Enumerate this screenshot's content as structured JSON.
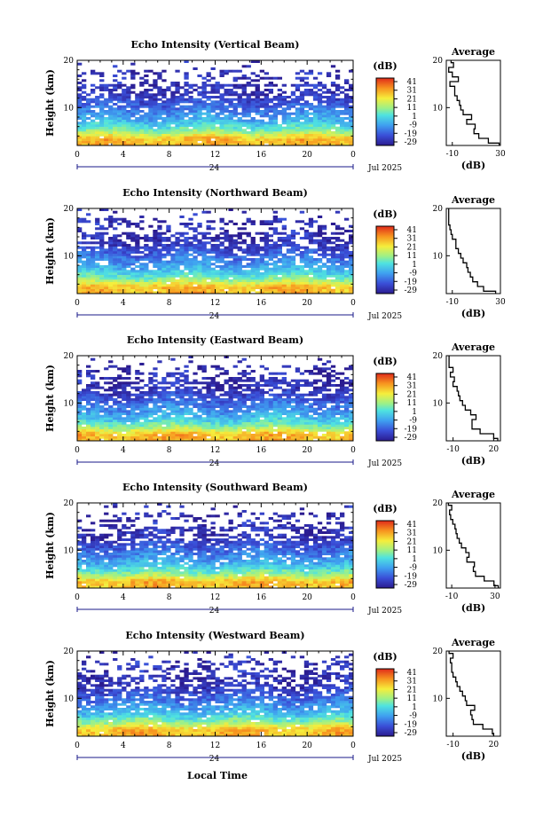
{
  "chart_data": {
    "type": "heatmap",
    "colorbar": {
      "unit": "(dB)",
      "ticks": [
        "41",
        "31",
        "21",
        "11",
        "1",
        "-9",
        "-19",
        "-29"
      ],
      "range": [
        -29,
        46
      ],
      "colormap": "jet"
    },
    "x_axis": {
      "label": "Local Time",
      "ticks": [
        "0",
        "4",
        "8",
        "12",
        "16",
        "20",
        "0"
      ],
      "range": [
        0,
        24
      ],
      "day_label": "24",
      "date_label": "Jul 2025"
    },
    "y_axis": {
      "label": "Height (km)",
      "ticks": [
        "20",
        "10"
      ],
      "range": [
        2,
        20
      ]
    },
    "profile_axis": {
      "title": "Average",
      "xlabel": "(dB)",
      "ylabel_ticks": [
        "20",
        "10"
      ]
    },
    "panels": [
      {
        "title": "Echo Intensity (Vertical Beam)",
        "profile_xticks": [
          "-10",
          "30"
        ],
        "profile_xrange": [
          -15,
          30
        ],
        "average_profile": {
          "height_km": [
            2,
            3,
            4,
            5,
            6,
            7,
            8,
            9,
            10,
            11,
            12,
            13,
            14,
            15,
            16,
            17,
            18,
            19,
            20
          ],
          "db": [
            29,
            20,
            12,
            8,
            9,
            2,
            6,
            -1,
            -3,
            -4,
            -6,
            -8,
            -8,
            -12,
            -5,
            -10,
            -13,
            -9,
            -11
          ]
        }
      },
      {
        "title": "Echo Intensity (Northward Beam)",
        "profile_xticks": [
          "-10",
          "30"
        ],
        "profile_xrange": [
          -15,
          30
        ],
        "average_profile": {
          "height_km": [
            2,
            3,
            4,
            5,
            6,
            7,
            8,
            9,
            10,
            11,
            12,
            13,
            14,
            15,
            16,
            17,
            18,
            19,
            20
          ],
          "db": [
            26,
            16,
            11,
            7,
            5,
            3,
            2,
            -1,
            -3,
            -5,
            -7,
            -7,
            -10,
            -11,
            -12,
            -13,
            -13,
            -13,
            -13
          ]
        }
      },
      {
        "title": "Echo Intensity (Eastward Beam)",
        "profile_xticks": [
          "-10",
          "20"
        ],
        "profile_xrange": [
          -15,
          25
        ],
        "average_profile": {
          "height_km": [
            2,
            3,
            4,
            5,
            6,
            7,
            8,
            9,
            10,
            11,
            12,
            13,
            14,
            15,
            16,
            17,
            18,
            19,
            20
          ],
          "db": [
            23,
            20,
            10,
            4,
            4,
            7,
            3,
            -1,
            -3,
            -5,
            -6,
            -7,
            -10,
            -9,
            -12,
            -10,
            -13,
            -13,
            -13
          ]
        }
      },
      {
        "title": "Echo Intensity (Southward Beam)",
        "profile_xticks": [
          "-10",
          "30"
        ],
        "profile_xrange": [
          -15,
          35
        ],
        "average_profile": {
          "height_km": [
            2,
            3,
            4,
            5,
            6,
            7,
            8,
            9,
            10,
            11,
            12,
            13,
            14,
            15,
            16,
            17,
            18,
            19,
            20
          ],
          "db": [
            33,
            29,
            20,
            12,
            10,
            11,
            4,
            6,
            3,
            -1,
            -3,
            -5,
            -6,
            -7,
            -9,
            -11,
            -12,
            -10,
            -13
          ]
        }
      },
      {
        "title": "Echo Intensity (Westward Beam)",
        "profile_xticks": [
          "-10",
          "20"
        ],
        "profile_xrange": [
          -15,
          25
        ],
        "average_profile": {
          "height_km": [
            2,
            3,
            4,
            5,
            6,
            7,
            8,
            9,
            10,
            11,
            12,
            13,
            14,
            15,
            16,
            17,
            18,
            19,
            20
          ],
          "db": [
            20,
            19,
            12,
            5,
            4,
            3,
            6,
            0,
            -1,
            -3,
            -5,
            -7,
            -8,
            -10,
            -11,
            -11,
            -12,
            -10,
            -13
          ]
        }
      }
    ]
  }
}
